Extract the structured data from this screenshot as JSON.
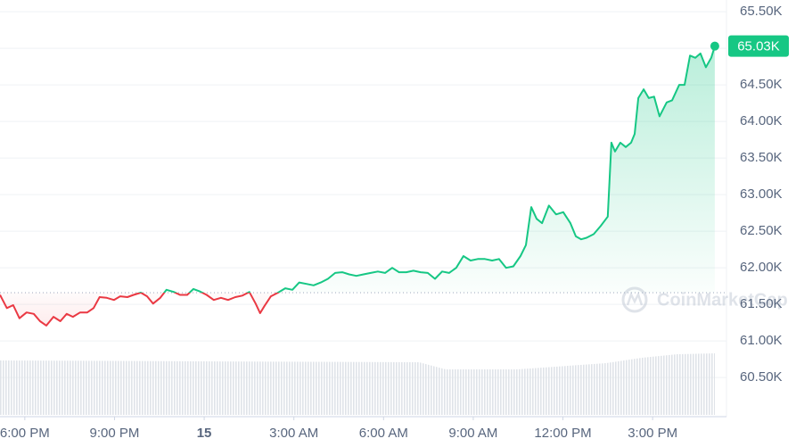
{
  "chart_data": {
    "type": "line",
    "watermark": "CoinMarketCap",
    "x": [
      17.17,
      17.4,
      17.61,
      17.82,
      18.06,
      18.3,
      18.51,
      18.72,
      18.96,
      19.19,
      19.4,
      19.61,
      19.85,
      20.09,
      20.3,
      20.5,
      20.74,
      20.98,
      21.19,
      21.43,
      21.64,
      21.88,
      22.09,
      22.29,
      22.53,
      22.74,
      22.98,
      23.19,
      23.43,
      23.64,
      23.84,
      24.08,
      24.32,
      24.56,
      24.8,
      25.04,
      25.28,
      25.51,
      25.72,
      25.87,
      26.02,
      26.23,
      26.47,
      26.71,
      26.95,
      27.18,
      27.42,
      27.66,
      27.9,
      28.14,
      28.38,
      28.62,
      28.85,
      29.09,
      29.33,
      29.57,
      29.81,
      30.05,
      30.29,
      30.52,
      30.76,
      31.0,
      31.24,
      31.48,
      31.72,
      31.96,
      32.19,
      32.43,
      32.67,
      32.91,
      33.15,
      33.39,
      33.63,
      33.86,
      34.1,
      34.34,
      34.58,
      34.76,
      34.94,
      35.12,
      35.3,
      35.53,
      35.77,
      36.01,
      36.25,
      36.43,
      36.61,
      36.79,
      37.03,
      37.26,
      37.5,
      37.62,
      37.74,
      37.92,
      38.1,
      38.28,
      38.4,
      38.52,
      38.7,
      38.87,
      39.05,
      39.23,
      39.47,
      39.65,
      39.89,
      40.07,
      40.25,
      40.43,
      40.6,
      40.78,
      40.96,
      41.08
    ],
    "series": [
      {
        "color": "#16c784",
        "values": [
          61630,
          61450,
          61490,
          61310,
          61390,
          61370,
          61270,
          61210,
          61330,
          61270,
          61370,
          61330,
          61390,
          61390,
          61450,
          61600,
          61590,
          61560,
          61610,
          61600,
          61630,
          61660,
          61610,
          61510,
          61590,
          61700,
          61670,
          61630,
          61630,
          61710,
          61680,
          61630,
          61560,
          61590,
          61560,
          61600,
          61620,
          61670,
          61510,
          61380,
          61480,
          61610,
          61660,
          61720,
          61700,
          61800,
          61780,
          61760,
          61800,
          61850,
          61930,
          61940,
          61910,
          61890,
          61910,
          61930,
          61950,
          61930,
          62000,
          61940,
          61940,
          61960,
          61940,
          61930,
          61850,
          61950,
          61930,
          62000,
          62160,
          62100,
          62120,
          62120,
          62100,
          62120,
          62000,
          62020,
          62160,
          62310,
          62830,
          62670,
          62610,
          62850,
          62730,
          62760,
          62610,
          62430,
          62390,
          62410,
          62460,
          62570,
          62700,
          63710,
          63590,
          63710,
          63650,
          63710,
          63830,
          64320,
          64440,
          64320,
          64340,
          64070,
          64260,
          64290,
          64500,
          64500,
          64900,
          64870,
          64930,
          64740,
          64870,
          65030
        ],
        "last_value_label": "65.03K"
      }
    ],
    "down_color": "#ea3943",
    "baseline": 61660,
    "xlim": [
      17.17,
      41.47
    ],
    "xticks": [
      {
        "value": 18,
        "label": "6:00 PM"
      },
      {
        "value": 21,
        "label": "9:00 PM"
      },
      {
        "value": 24,
        "label": "15"
      },
      {
        "value": 27,
        "label": "3:00 AM"
      },
      {
        "value": 30,
        "label": "6:00 AM"
      },
      {
        "value": 33,
        "label": "9:00 AM"
      },
      {
        "value": 36,
        "label": "12:00 PM"
      },
      {
        "value": 39,
        "label": "3:00 PM"
      }
    ],
    "ylim": [
      59990,
      65660
    ],
    "yticks": [
      {
        "value": 60500,
        "label": "60.50K"
      },
      {
        "value": 61000,
        "label": "61.00K"
      },
      {
        "value": 61500,
        "label": "61.50K"
      },
      {
        "value": 62000,
        "label": "62.00K"
      },
      {
        "value": 62500,
        "label": "62.50K"
      },
      {
        "value": 63000,
        "label": "63.00K"
      },
      {
        "value": 63500,
        "label": "63.50K"
      },
      {
        "value": 64000,
        "label": "64.00K"
      },
      {
        "value": 64500,
        "label": "64.50K"
      },
      {
        "value": 65000,
        "label": "65.00K"
      },
      {
        "value": 65500,
        "label": "65.50K"
      }
    ],
    "grid": true
  }
}
